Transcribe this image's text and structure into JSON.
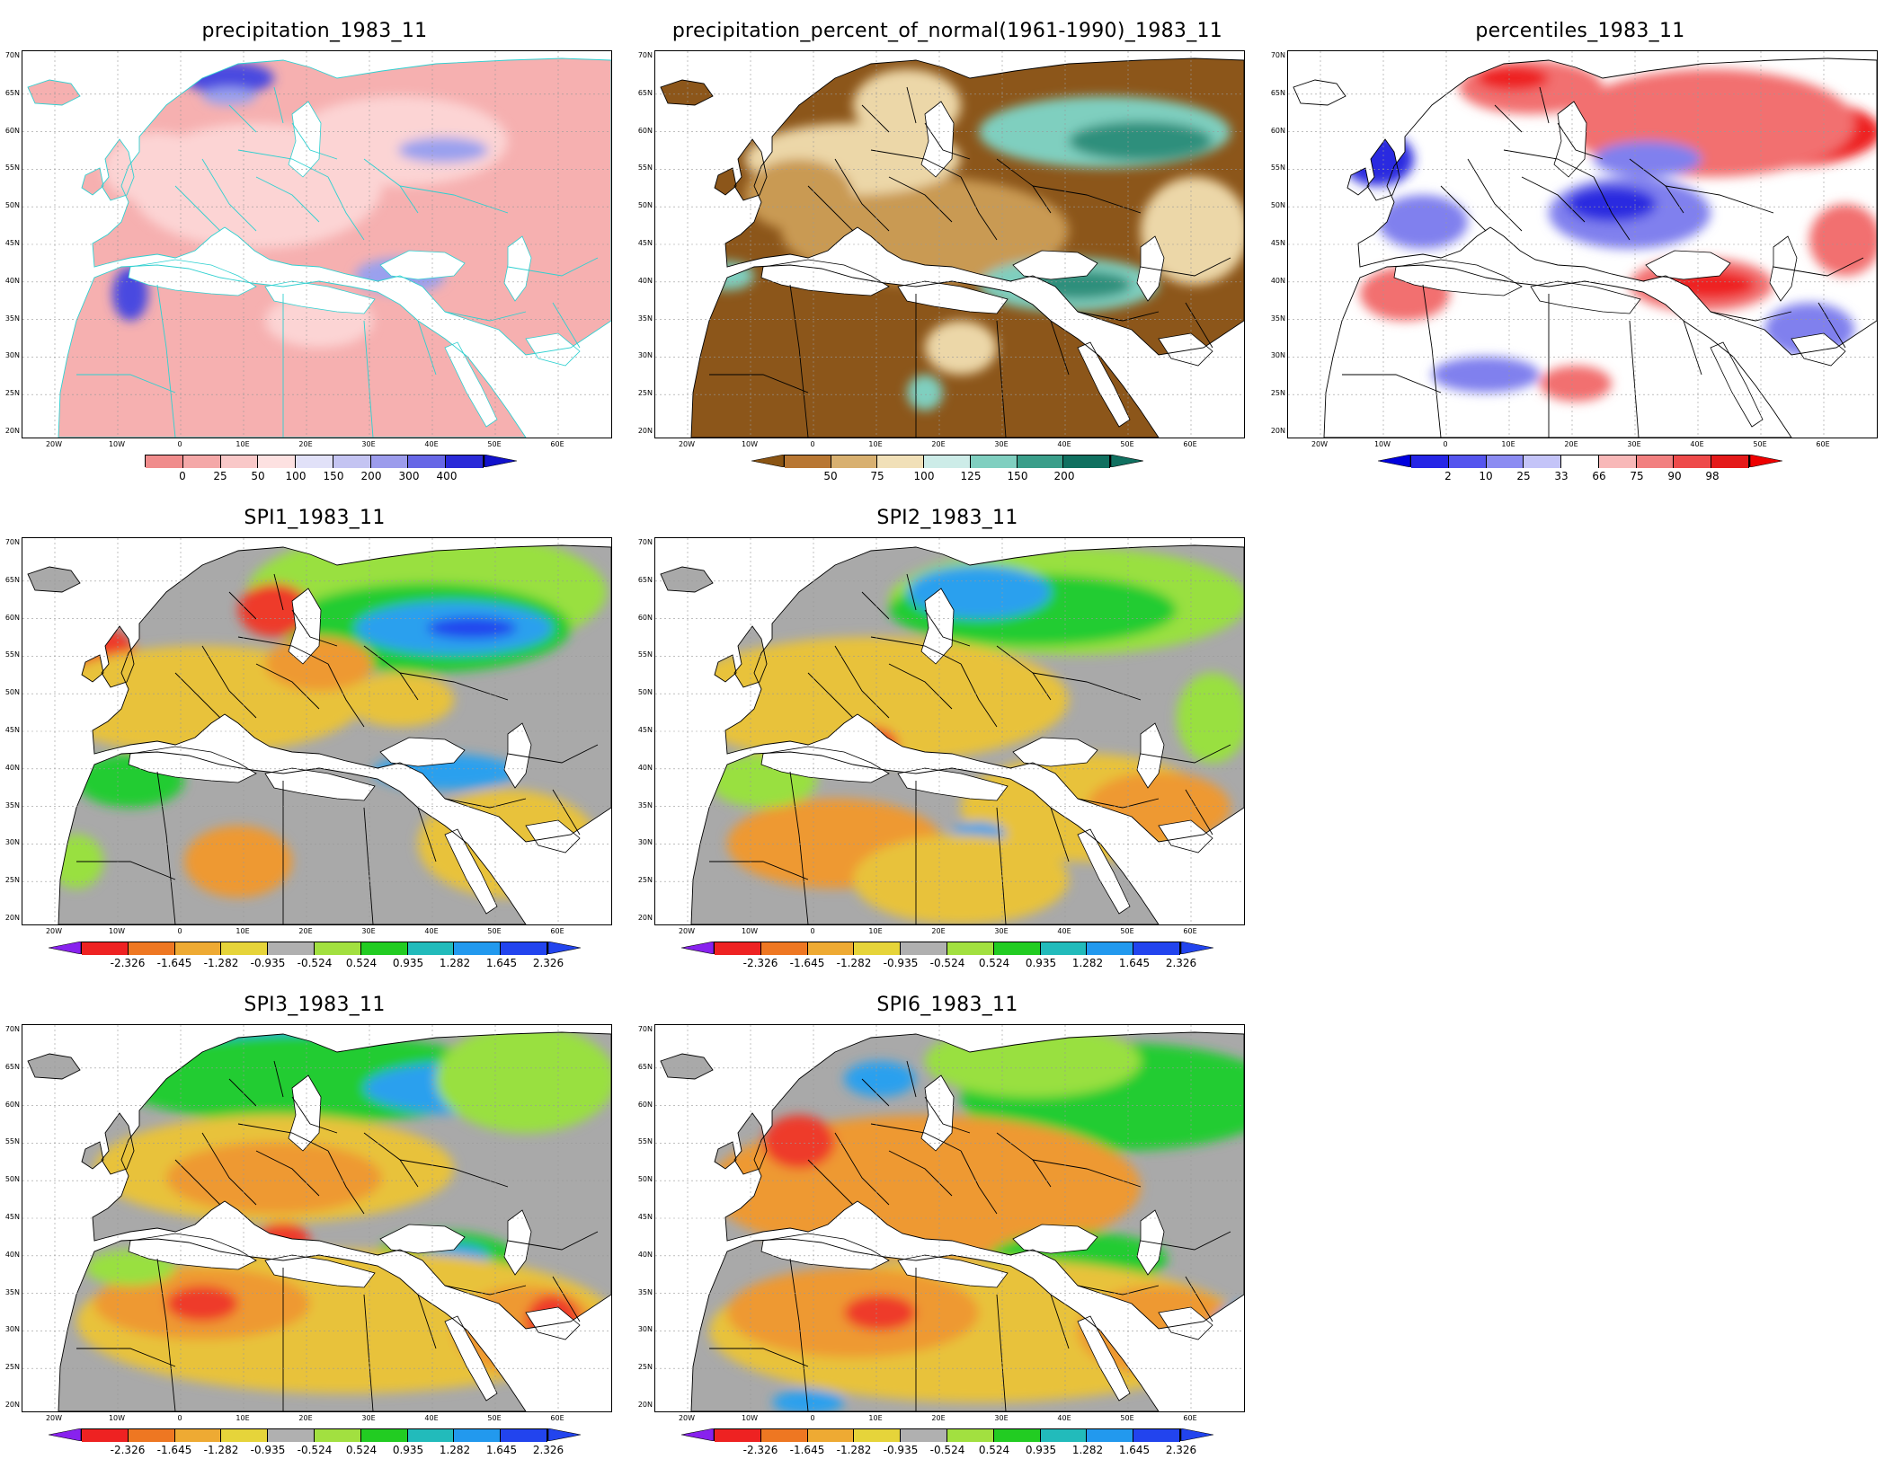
{
  "panels": [
    {
      "id": "precip",
      "title": "precipitation_1983_11",
      "lat_labels": [
        "70N",
        "65N",
        "60N",
        "55N",
        "50N",
        "45N",
        "40N",
        "35N",
        "30N",
        "25N",
        "20N"
      ],
      "lon_labels": [
        "20W",
        "10W",
        "0",
        "10E",
        "20E",
        "30E",
        "40E",
        "50E",
        "60E"
      ],
      "legend": {
        "colors": [
          "#f08c8c",
          "#f4a8a8",
          "#f9c8c8",
          "#fde1e1",
          "#e1e1f8",
          "#c4c4f2",
          "#9c9cec",
          "#6767e6",
          "#2a2ad8"
        ],
        "ticks": [
          "0",
          "25",
          "50",
          "100",
          "150",
          "200",
          "300",
          "400"
        ],
        "left_triangle": false,
        "right_triangle_color": "#1111cc"
      },
      "map_palette": {
        "base": "#f6b0b0",
        "light": "#fcd4d4",
        "wet": "#9aa0ee",
        "very_wet": "#4a4ae0",
        "border": "#2fd0d0"
      }
    },
    {
      "id": "pnormal",
      "title": "precipitation_percent_of_normal(1961-1990)_1983_11",
      "lat_labels": [
        "70N",
        "65N",
        "60N",
        "55N",
        "50N",
        "45N",
        "40N",
        "35N",
        "30N",
        "25N",
        "20N"
      ],
      "lon_labels": [
        "20W",
        "10W",
        "0",
        "10E",
        "20E",
        "30E",
        "40E",
        "50E",
        "60E"
      ],
      "legend": {
        "colors": [
          "#b87733",
          "#d8b070",
          "#f1e0b8",
          "#cdece8",
          "#80cfc0",
          "#3a9e8a",
          "#107060"
        ],
        "ticks": [
          "50",
          "75",
          "100",
          "125",
          "150",
          "200"
        ],
        "left_triangle_color": "#8a5413",
        "right_triangle_color": "#107060"
      },
      "map_palette": {
        "base": "#8c561a",
        "mid": "#c99a52",
        "light": "#ecd7a8",
        "wet": "#7fcfbf",
        "very_wet": "#2f8f7c",
        "border": "#000000"
      }
    },
    {
      "id": "pctl",
      "title": "percentiles_1983_11",
      "lat_labels": [
        "70N",
        "65N",
        "60N",
        "55N",
        "50N",
        "45N",
        "40N",
        "35N",
        "30N",
        "25N",
        "20N"
      ],
      "lon_labels": [
        "20W",
        "10W",
        "0",
        "10E",
        "20E",
        "30E",
        "40E",
        "50E",
        "60E"
      ],
      "legend": {
        "colors": [
          "#2626e6",
          "#5555ee",
          "#8c8cf2",
          "#c4c4f8",
          "#ffffff",
          "#f8b8b8",
          "#f28080",
          "#ee4a4a",
          "#e41a1a"
        ],
        "ticks": [
          "2",
          "10",
          "25",
          "33",
          "66",
          "75",
          "90",
          "98"
        ],
        "left_triangle_color": "#0000dd",
        "right_triangle_color": "#ee0000"
      },
      "map_palette": {
        "base": "#ffffff",
        "dry": "#f27070",
        "very_dry": "#ee2020",
        "wet": "#8080ee",
        "very_wet": "#2a2ae0",
        "border": "#000000"
      }
    },
    {
      "id": "spi1",
      "title": "SPI1_1983_11",
      "lat_labels": [
        "70N",
        "65N",
        "60N",
        "55N",
        "50N",
        "45N",
        "40N",
        "35N",
        "30N",
        "25N",
        "20N"
      ],
      "lon_labels": [
        "20W",
        "10W",
        "0",
        "10E",
        "20E",
        "30E",
        "40E",
        "50E",
        "60E"
      ],
      "legend": {
        "colors": [
          "#ee2222",
          "#ee7722",
          "#eeaa33",
          "#e6d43a",
          "#b0b0b0",
          "#a2e040",
          "#22cc22",
          "#22bbbb",
          "#2299ee",
          "#2244ee"
        ],
        "ticks": [
          "-2.326",
          "-1.645",
          "-1.282",
          "-0.935",
          "-0.524",
          "0.524",
          "0.935",
          "1.282",
          "1.645",
          "2.326"
        ],
        "left_triangle_color": "#8822ee",
        "right_triangle_color": "#2244ee"
      },
      "map_palette": {
        "base": "#a9a9a9",
        "dry": "#e8c23a",
        "drier": "#ee9933",
        "driest": "#ee3a2a",
        "wet": "#99e040",
        "wetter": "#22cc33",
        "wettest": "#2aa0ee",
        "extreme": "#2244ee",
        "border": "#000000"
      }
    },
    {
      "id": "spi2",
      "title": "SPI2_1983_11",
      "lat_labels": [
        "70N",
        "65N",
        "60N",
        "55N",
        "50N",
        "45N",
        "40N",
        "35N",
        "30N",
        "25N",
        "20N"
      ],
      "lon_labels": [
        "20W",
        "10W",
        "0",
        "10E",
        "20E",
        "30E",
        "40E",
        "50E",
        "60E"
      ],
      "legend": {
        "colors": [
          "#ee2222",
          "#ee7722",
          "#eeaa33",
          "#e6d43a",
          "#b0b0b0",
          "#a2e040",
          "#22cc22",
          "#22bbbb",
          "#2299ee",
          "#2244ee"
        ],
        "ticks": [
          "-2.326",
          "-1.645",
          "-1.282",
          "-0.935",
          "-0.524",
          "0.524",
          "0.935",
          "1.282",
          "1.645",
          "2.326"
        ],
        "left_triangle_color": "#8822ee",
        "right_triangle_color": "#2244ee"
      },
      "map_palette": {
        "base": "#a9a9a9",
        "dry": "#e8c23a",
        "drier": "#ee9933",
        "driest": "#ee3a2a",
        "wet": "#99e040",
        "wetter": "#22cc33",
        "wettest": "#2aa0ee",
        "extreme": "#2244ee",
        "border": "#000000"
      }
    },
    {
      "id": "spi3",
      "title": "SPI3_1983_11",
      "lat_labels": [
        "70N",
        "65N",
        "60N",
        "55N",
        "50N",
        "45N",
        "40N",
        "35N",
        "30N",
        "25N",
        "20N"
      ],
      "lon_labels": [
        "20W",
        "10W",
        "0",
        "10E",
        "20E",
        "30E",
        "40E",
        "50E",
        "60E"
      ],
      "legend": {
        "colors": [
          "#ee2222",
          "#ee7722",
          "#eeaa33",
          "#e6d43a",
          "#b0b0b0",
          "#a2e040",
          "#22cc22",
          "#22bbbb",
          "#2299ee",
          "#2244ee"
        ],
        "ticks": [
          "-2.326",
          "-1.645",
          "-1.282",
          "-0.935",
          "-0.524",
          "0.524",
          "0.935",
          "1.282",
          "1.645",
          "2.326"
        ],
        "left_triangle_color": "#8822ee",
        "right_triangle_color": "#2244ee"
      },
      "map_palette": {
        "base": "#a9a9a9",
        "dry": "#e8c23a",
        "drier": "#ee9933",
        "driest": "#ee3a2a",
        "wet": "#99e040",
        "wetter": "#22cc33",
        "wettest": "#2aa0ee",
        "extreme": "#2244ee",
        "border": "#000000"
      }
    },
    {
      "id": "spi6",
      "title": "SPI6_1983_11",
      "lat_labels": [
        "70N",
        "65N",
        "60N",
        "55N",
        "50N",
        "45N",
        "40N",
        "35N",
        "30N",
        "25N",
        "20N"
      ],
      "lon_labels": [
        "20W",
        "10W",
        "0",
        "10E",
        "20E",
        "30E",
        "40E",
        "50E",
        "60E"
      ],
      "legend": {
        "colors": [
          "#ee2222",
          "#ee7722",
          "#eeaa33",
          "#e6d43a",
          "#b0b0b0",
          "#a2e040",
          "#22cc22",
          "#22bbbb",
          "#2299ee",
          "#2244ee"
        ],
        "ticks": [
          "-2.326",
          "-1.645",
          "-1.282",
          "-0.935",
          "-0.524",
          "0.524",
          "0.935",
          "1.282",
          "1.645",
          "2.326"
        ],
        "left_triangle_color": "#8822ee",
        "right_triangle_color": "#2244ee"
      },
      "map_palette": {
        "base": "#a9a9a9",
        "dry": "#e8c23a",
        "drier": "#ee9933",
        "driest": "#ee3a2a",
        "wet": "#99e040",
        "wetter": "#22cc33",
        "wettest": "#2aa0ee",
        "extreme": "#2244ee",
        "border": "#000000"
      }
    }
  ]
}
